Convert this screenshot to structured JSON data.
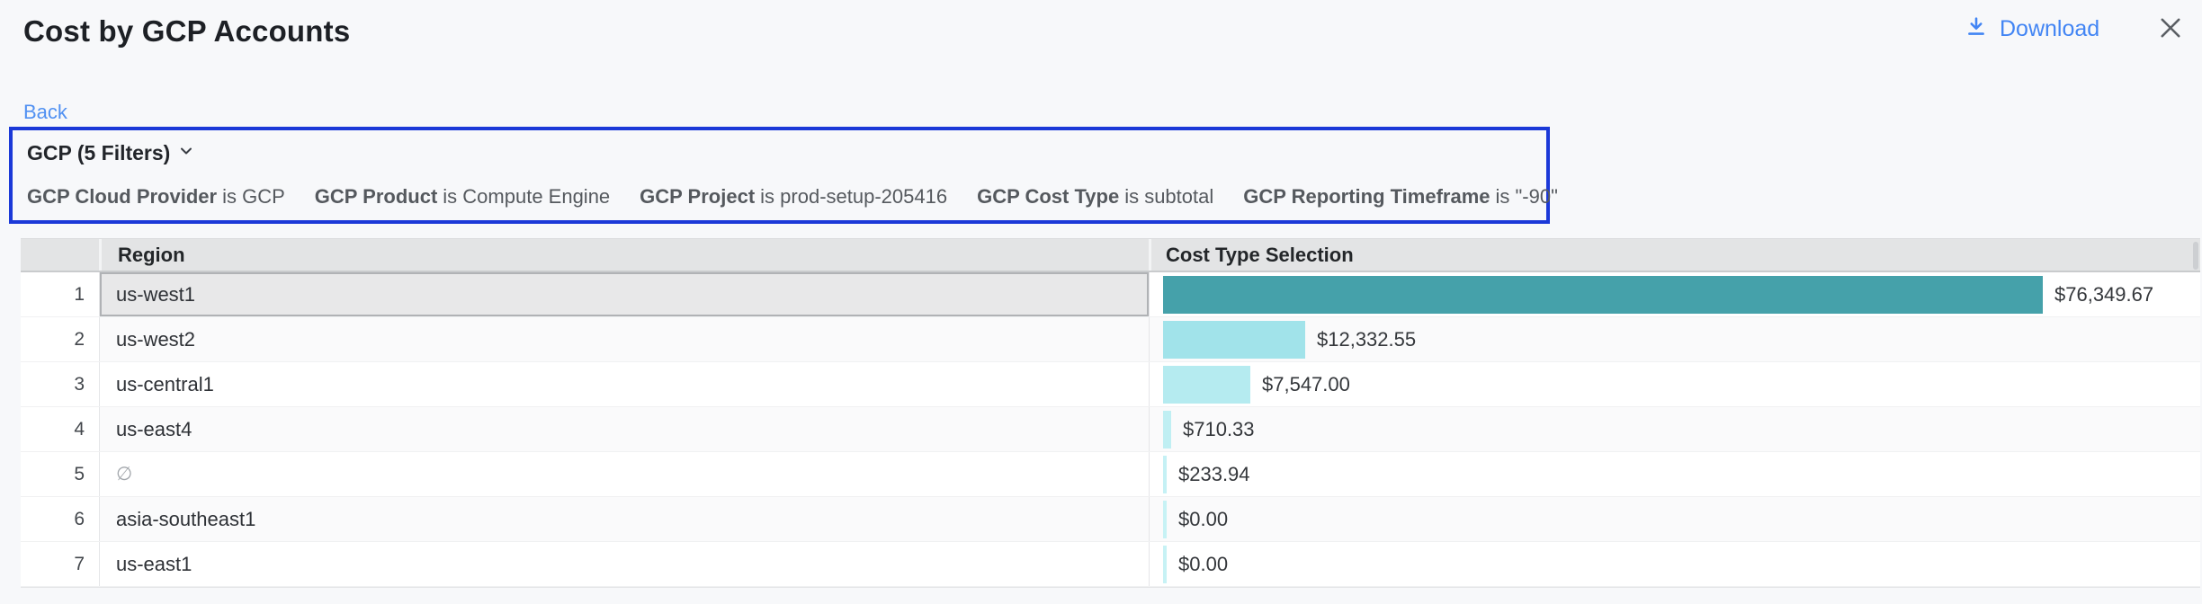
{
  "header": {
    "title": "Cost by GCP Accounts",
    "download_label": "Download"
  },
  "nav": {
    "back_label": "Back"
  },
  "filters": {
    "summary_label": "GCP (5 Filters)",
    "highlight_border_color": "#1b39d8",
    "items": [
      {
        "field": "GCP Cloud Provider",
        "condition": "is GCP"
      },
      {
        "field": "GCP Product",
        "condition": "is Compute Engine"
      },
      {
        "field": "GCP Project",
        "condition": "is prod-setup-205416"
      },
      {
        "field": "GCP Cost Type",
        "condition": "is subtotal"
      },
      {
        "field": "GCP Reporting Timeframe",
        "condition": "is \"-90\""
      }
    ]
  },
  "table": {
    "columns": {
      "region": "Region",
      "cost": "Cost Type Selection"
    },
    "max_value": 76349.67,
    "rows": [
      {
        "num": "1",
        "region": "us-west1",
        "value": 76349.67,
        "value_label": "$76,349.67",
        "bar_color": "#45a1aa",
        "selected": true,
        "muted": false
      },
      {
        "num": "2",
        "region": "us-west2",
        "value": 12332.55,
        "value_label": "$12,332.55",
        "bar_color": "#a1e3ea",
        "selected": false,
        "muted": false
      },
      {
        "num": "3",
        "region": "us-central1",
        "value": 7547.0,
        "value_label": "$7,547.00",
        "bar_color": "#b5ebf0",
        "selected": false,
        "muted": false
      },
      {
        "num": "4",
        "region": "us-east4",
        "value": 710.33,
        "value_label": "$710.33",
        "bar_color": "#c0eff3",
        "selected": false,
        "muted": false
      },
      {
        "num": "5",
        "region": "∅",
        "value": 233.94,
        "value_label": "$233.94",
        "bar_color": "#c5f1f5",
        "selected": false,
        "muted": true
      },
      {
        "num": "6",
        "region": "asia-southeast1",
        "value": 0.0,
        "value_label": "$0.00",
        "bar_color": "#c7f2f5",
        "selected": false,
        "muted": false
      },
      {
        "num": "7",
        "region": "us-east1",
        "value": 0.0,
        "value_label": "$0.00",
        "bar_color": "#c7f2f5",
        "selected": false,
        "muted": false
      }
    ]
  },
  "chart_data": {
    "type": "bar",
    "title": "Cost by GCP Accounts",
    "series_label": "Cost Type Selection",
    "categories": [
      "us-west1",
      "us-west2",
      "us-central1",
      "us-east4",
      "∅",
      "asia-southeast1",
      "us-east1"
    ],
    "values": [
      76349.67,
      12332.55,
      7547.0,
      710.33,
      233.94,
      0.0,
      0.0
    ],
    "xlim": [
      0,
      76349.67
    ],
    "orientation": "horizontal",
    "bar_colors": [
      "#45a1aa",
      "#a1e3ea",
      "#b5ebf0",
      "#c0eff3",
      "#c5f1f5",
      "#c7f2f5",
      "#c7f2f5"
    ]
  },
  "colors": {
    "accent_blue": "#4285f4",
    "filter_border_blue": "#1b39d8",
    "bar_teal": "#45a1aa",
    "bar_cyan_light": "#c7f2f5",
    "header_gray": "#e3e4e5"
  }
}
